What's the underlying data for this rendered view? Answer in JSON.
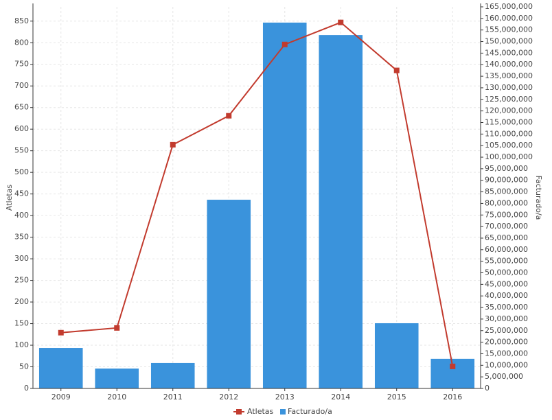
{
  "chart_data": {
    "type": "bar-line",
    "categories": [
      "2009",
      "2010",
      "2011",
      "2012",
      "2013",
      "2014",
      "2015",
      "2016"
    ],
    "y_label": "Atletas",
    "y2_label": "Facturado/a",
    "series": [
      {
        "name": "Atletas",
        "type": "line",
        "color": "#c23b2e",
        "axis": "y",
        "values": [
          129,
          140,
          564,
          631,
          796,
          847,
          736,
          51
        ]
      },
      {
        "name": "Facturado/a",
        "type": "bar",
        "color": "#3a93dc",
        "axis": "y2",
        "values": [
          17500000,
          8600000,
          11000000,
          81600000,
          158200000,
          152800000,
          28200000,
          12800000
        ]
      }
    ],
    "ylim": [
      0,
      883
    ],
    "yticks": [
      0,
      50,
      100,
      150,
      200,
      250,
      300,
      350,
      400,
      450,
      500,
      550,
      600,
      650,
      700,
      750,
      800,
      850
    ],
    "y2lim": [
      0,
      165000000
    ],
    "y2ticks": [
      0,
      {
        "value": 5000000,
        "label": "5,000,000"
      },
      {
        "value": 10000000,
        "label": "10,000,000"
      },
      {
        "value": 15000000,
        "label": "15,000,000"
      },
      {
        "value": 20000000,
        "label": "20,000,000"
      },
      {
        "value": 25000000,
        "label": "25,000,000"
      },
      {
        "value": 30000000,
        "label": "30,000,000"
      },
      {
        "value": 35000000,
        "label": "35,000,000"
      },
      {
        "value": 40000000,
        "label": "40,000,000"
      },
      {
        "value": 45000000,
        "label": "45,000,000"
      },
      {
        "value": 50000000,
        "label": "50,000,000"
      },
      {
        "value": 55000000,
        "label": "55,000,000"
      },
      {
        "value": 60000000,
        "label": "60,000,000"
      },
      {
        "value": 65000000,
        "label": "65,000,000"
      },
      {
        "value": 70000000,
        "label": "70,000,000"
      },
      {
        "value": 75000000,
        "label": "75,000,000"
      },
      {
        "value": 80000000,
        "label": "80,000,000"
      },
      {
        "value": 85000000,
        "label": "85,000,000"
      },
      {
        "value": 90000000,
        "label": "90,000,000"
      },
      {
        "value": 95000000,
        "label": "95,000,000"
      },
      {
        "value": 100000000,
        "label": "100,000,000"
      },
      {
        "value": 105000000,
        "label": "105,000,000"
      },
      {
        "value": 110000000,
        "label": "110,000,000"
      },
      {
        "value": 115000000,
        "label": "115,000,000"
      },
      {
        "value": 120000000,
        "label": "120,000,000"
      },
      {
        "value": 125000000,
        "label": "125,000,000"
      },
      {
        "value": 130000000,
        "label": "130,000,000"
      },
      {
        "value": 135000000,
        "label": "135,000,000"
      },
      {
        "value": 140000000,
        "label": "140,000,000"
      },
      {
        "value": 145000000,
        "label": "145,000,000"
      },
      {
        "value": 150000000,
        "label": "150,000,000"
      },
      {
        "value": 155000000,
        "label": "155,000,000"
      },
      {
        "value": 160000000,
        "label": "160,000,000"
      },
      {
        "value": 165000000,
        "label": "165,000,000"
      }
    ],
    "grid": true
  }
}
